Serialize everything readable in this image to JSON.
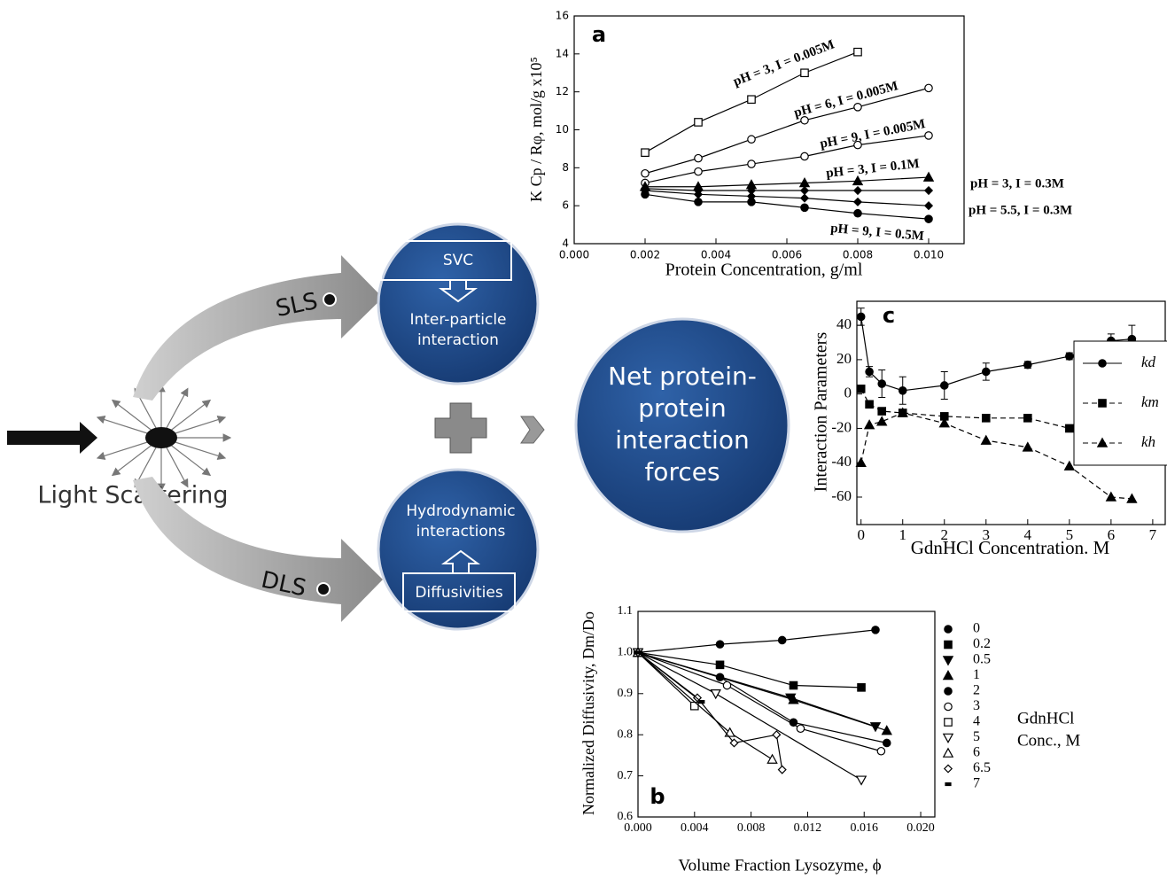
{
  "diagram": {
    "source_label": "Light Scattering",
    "sls_label": "SLS",
    "dls_label": "DLS",
    "sls_circle": {
      "box": "SVC",
      "lines": [
        "Inter-particle",
        "interaction"
      ]
    },
    "dls_circle": {
      "lines": [
        "Hydrodynamic",
        "interactions"
      ],
      "box": "Diffusivities"
    },
    "result_circle": {
      "lines": [
        "Net protein-",
        "protein",
        "interaction",
        "forces"
      ]
    }
  },
  "chart_data": [
    {
      "type": "line",
      "title": "a",
      "x_label": "Protein Concentration, g/ml",
      "y_label": "K Cp / Rφ, mol/g x10⁵",
      "color": "#000000",
      "xlim": [
        0,
        0.011
      ],
      "xticks": [
        {
          "value": 0,
          "label": "0.000"
        },
        0.002,
        0.004,
        0.006,
        0.008,
        {
          "value": 0.01,
          "label": "0.010"
        }
      ],
      "ylim": [
        4,
        16
      ],
      "yticks": [
        4,
        6,
        8,
        10,
        12,
        14,
        16
      ],
      "series": [
        {
          "name": "pH = 3, I = 0.005M",
          "marker": "square-open",
          "x": [
            0.002,
            0.0035,
            0.005,
            0.0065,
            0.008
          ],
          "values": [
            8.8,
            10.4,
            11.6,
            13.0,
            14.1
          ]
        },
        {
          "name": "pH = 6, I = 0.005M",
          "marker": "circle-open",
          "x": [
            0.002,
            0.0035,
            0.005,
            0.0065,
            0.008,
            0.01
          ],
          "values": [
            7.7,
            8.5,
            9.5,
            10.5,
            11.2,
            12.2
          ]
        },
        {
          "name": "pH = 9, I = 0.005M",
          "marker": "circle-open",
          "x": [
            0.002,
            0.0035,
            0.005,
            0.0065,
            0.008,
            0.01
          ],
          "values": [
            7.2,
            7.8,
            8.2,
            8.6,
            9.2,
            9.7
          ]
        },
        {
          "name": "pH = 3, I = 0.1M",
          "marker": "triangle",
          "x": [
            0.002,
            0.0035,
            0.005,
            0.0065,
            0.008,
            0.01
          ],
          "values": [
            7.0,
            7.0,
            7.1,
            7.2,
            7.3,
            7.5
          ]
        },
        {
          "name": "pH = 3, I = 0.3M",
          "marker": "diamond",
          "x": [
            0.002,
            0.0035,
            0.005,
            0.0065,
            0.008,
            0.01
          ],
          "values": [
            6.9,
            6.8,
            6.8,
            6.8,
            6.8,
            6.8
          ]
        },
        {
          "name": "pH = 5.5, I = 0.3M",
          "marker": "diamond",
          "x": [
            0.002,
            0.0035,
            0.005,
            0.0065,
            0.008,
            0.01
          ],
          "values": [
            6.8,
            6.6,
            6.5,
            6.4,
            6.2,
            6.0
          ]
        },
        {
          "name": "pH = 9, I = 0.5M",
          "marker": "circle",
          "x": [
            0.002,
            0.0035,
            0.005,
            0.0065,
            0.008,
            0.01
          ],
          "values": [
            6.6,
            6.2,
            6.2,
            5.9,
            5.6,
            5.3
          ]
        }
      ]
    },
    {
      "type": "line",
      "title": "b",
      "x_label": "Volume Fraction Lysozyme, ϕ",
      "y_label": "Normalized Diffusivity, Dm/Do",
      "color": "#000000",
      "legend": "right",
      "legend_title": [
        "GdnHCl",
        "Conc., M"
      ],
      "xlim": [
        0,
        0.021
      ],
      "xticks": [
        {
          "value": 0,
          "label": "0.000"
        },
        0.004,
        0.008,
        0.012,
        0.016,
        {
          "value": 0.02,
          "label": "0.020"
        }
      ],
      "ylim": [
        0.6,
        1.1
      ],
      "yticks": [
        0.6,
        0.7,
        0.8,
        0.9,
        {
          "value": 1,
          "label": "1.0"
        },
        1.1
      ],
      "series": [
        {
          "name": "0",
          "marker": "circle",
          "x": [
            0,
            0.0058,
            0.0102,
            0.0168
          ],
          "values": [
            1.0,
            1.02,
            1.03,
            1.055
          ]
        },
        {
          "name": "0.2",
          "marker": "square",
          "x": [
            0,
            0.0058,
            0.011,
            0.0158
          ],
          "values": [
            1.0,
            0.97,
            0.92,
            0.915
          ]
        },
        {
          "name": "0.5",
          "marker": "triangle-down",
          "x": [
            0,
            0.0108,
            0.0168
          ],
          "values": [
            1.0,
            0.89,
            0.82
          ]
        },
        {
          "name": "1",
          "marker": "triangle",
          "x": [
            0,
            0.011,
            0.0176
          ],
          "values": [
            1.0,
            0.885,
            0.81
          ]
        },
        {
          "name": "2",
          "marker": "circle",
          "x": [
            0,
            0.0058,
            0.011,
            0.0176
          ],
          "values": [
            1.0,
            0.94,
            0.83,
            0.78
          ]
        },
        {
          "name": "3",
          "marker": "circle-open",
          "x": [
            0,
            0.0063,
            0.0115,
            0.0172
          ],
          "values": [
            1.0,
            0.92,
            0.815,
            0.76
          ]
        },
        {
          "name": "4",
          "marker": "square-open",
          "x": [
            0,
            0.004
          ],
          "values": [
            1.0,
            0.87
          ]
        },
        {
          "name": "5",
          "marker": "triangle-down-open",
          "x": [
            0,
            0.0055,
            0.0158
          ],
          "values": [
            1.0,
            0.9,
            0.69
          ]
        },
        {
          "name": "6",
          "marker": "triangle-open",
          "x": [
            0,
            0.0065,
            0.0095
          ],
          "values": [
            1.0,
            0.805,
            0.74
          ]
        },
        {
          "name": "6.5",
          "marker": "diamond-open",
          "x": [
            0,
            0.0042,
            0.0068,
            0.0098,
            0.0102
          ],
          "values": [
            1.0,
            0.89,
            0.78,
            0.8,
            0.715
          ]
        },
        {
          "name": "7",
          "marker": "dash",
          "x": [
            0,
            0.0045
          ],
          "values": [
            1.0,
            0.88
          ]
        }
      ]
    },
    {
      "type": "line",
      "title": "c",
      "x_label": "GdnHCl Concentration. M",
      "y_label": "Interaction Parameters",
      "color": "#000000",
      "legend": "right",
      "xlim": [
        -0.1,
        7.3
      ],
      "xticks": [
        0,
        1,
        2,
        3,
        4,
        5,
        6,
        7
      ],
      "ylim": [
        -76,
        54
      ],
      "yticks": [
        -60,
        -40,
        -20,
        0,
        20,
        40
      ],
      "series": [
        {
          "name": "kd",
          "marker": "circle",
          "line_style": "solid",
          "x": [
            0,
            0.2,
            0.5,
            1,
            2,
            3,
            4,
            5,
            6,
            6.5
          ],
          "values": [
            45,
            13,
            6,
            2,
            5,
            13,
            17,
            22,
            31,
            32
          ],
          "errors": [
            5,
            3,
            8,
            8,
            8,
            5,
            2,
            2,
            4,
            8
          ]
        },
        {
          "name": "km",
          "marker": "square",
          "line_style": "dashed",
          "x": [
            0,
            0.2,
            0.5,
            1,
            2,
            3,
            4,
            5
          ],
          "values": [
            3,
            -6,
            -10,
            -11,
            -13,
            -14,
            -14,
            -20
          ]
        },
        {
          "name": "kh",
          "marker": "triangle",
          "line_style": "dashed",
          "x": [
            0,
            0.2,
            0.5,
            1,
            2,
            3,
            4,
            5,
            6,
            6.5
          ],
          "values": [
            -40,
            -18,
            -16,
            -11,
            -17,
            -27,
            -31,
            -42,
            -60,
            -61
          ]
        }
      ]
    }
  ]
}
